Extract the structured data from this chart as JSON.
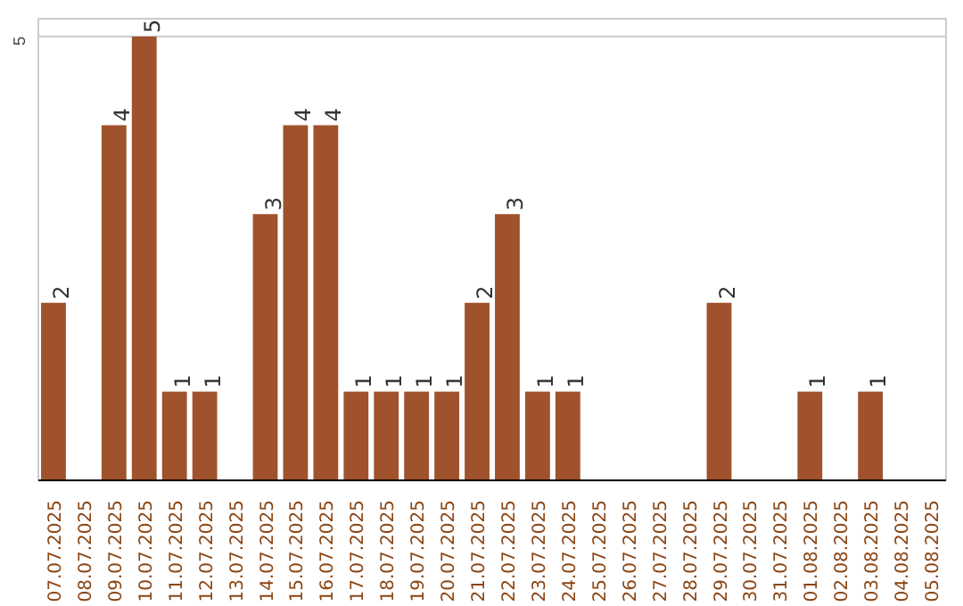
{
  "chart_data": {
    "type": "bar",
    "categories": [
      "07.07.2025",
      "08.07.2025",
      "09.07.2025",
      "10.07.2025",
      "11.07.2025",
      "12.07.2025",
      "13.07.2025",
      "14.07.2025",
      "15.07.2025",
      "16.07.2025",
      "17.07.2025",
      "18.07.2025",
      "19.07.2025",
      "20.07.2025",
      "21.07.2025",
      "22.07.2025",
      "23.07.2025",
      "24.07.2025",
      "25.07.2025",
      "26.07.2025",
      "27.07.2025",
      "28.07.2025",
      "29.07.2025",
      "30.07.2025",
      "31.07.2025",
      "01.08.2025",
      "02.08.2025",
      "03.08.2025",
      "04.08.2025",
      "05.08.2025"
    ],
    "values": [
      2,
      0,
      4,
      5,
      1,
      1,
      0,
      3,
      4,
      4,
      1,
      1,
      1,
      1,
      2,
      3,
      1,
      1,
      0,
      0,
      0,
      0,
      2,
      0,
      0,
      1,
      0,
      1,
      0,
      0
    ],
    "value_labels": [
      "2",
      null,
      "4",
      "5",
      "1",
      "1",
      null,
      "3",
      "4",
      "4",
      "1",
      "1",
      "1",
      "1",
      "2",
      "3",
      "1",
      "1",
      null,
      null,
      null,
      null,
      "2",
      null,
      null,
      "1",
      null,
      "1",
      null,
      null
    ],
    "color": "#a0522d",
    "ylim": [
      0,
      5.2
    ],
    "yticks": [
      5
    ],
    "grid": "y"
  }
}
